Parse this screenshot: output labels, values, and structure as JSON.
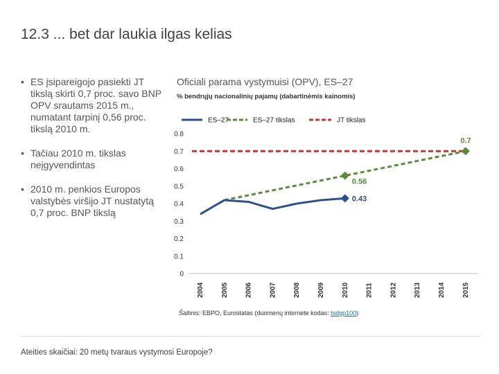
{
  "slide": {
    "title": "12.3 ... bet dar laukia ilgas kelias",
    "footer": "Ateities skaičiai: 20 metų tvaraus vystymosi Europoje?"
  },
  "bullets": [
    "ES įsipareigojo pasiekti JT tikslą skirti 0,7 proc. savo BNP OPV srautams 2015 m., numatant tarpinį 0,56 proc. tikslą 2010 m.",
    "Tačiau 2010 m. tikslas neįgyvendintas",
    "2010 m. penkios Europos valstybės viršijo JT nustatytą 0,7 proc. BNP tikslą"
  ],
  "bullet_marker": "•",
  "source": {
    "prefix": "Šaltinis:",
    "text": " EBPO, Eurostatas (duomenų internete kodas: ",
    "link": "tsdgp100",
    "suffix": ")"
  },
  "colors": {
    "eu27": "#2e4f8f",
    "target": "#5f8a3a",
    "un": "#c0392b",
    "axis": "#595959"
  },
  "chart_data": {
    "type": "line",
    "title": "Oficiali parama vystymuisi (OPV), ES–27",
    "subtitle": "% bendrųjų nacionalinių pajamų (dabartinėmis kainomis)",
    "x": [
      2004,
      2005,
      2006,
      2007,
      2008,
      2009,
      2010,
      2011,
      2012,
      2013,
      2014,
      2015
    ],
    "xtick_labels": [
      "2004",
      "2005",
      "2006",
      "2007",
      "2008",
      "2009",
      "2010",
      "2011",
      "2012",
      "2013",
      "2014",
      "2015"
    ],
    "yticks": [
      0,
      0.1,
      0.2,
      0.3,
      0.4,
      0.5,
      0.6,
      0.7,
      0.8
    ],
    "ytick_labels": [
      "0",
      "0.1",
      "0.2",
      "0.3",
      "0.4",
      "0.5",
      "0.6",
      "0.7",
      "0.8"
    ],
    "ylim": [
      0,
      0.8
    ],
    "legend_position": "top",
    "series": [
      {
        "name": "ES–27",
        "style": "solid",
        "x": [
          2004,
          2005,
          2006,
          2007,
          2008,
          2009,
          2010
        ],
        "values": [
          0.34,
          0.42,
          0.41,
          0.37,
          0.4,
          0.42,
          0.43
        ],
        "end_marker": "diamond"
      },
      {
        "name": "ES–27 tikslas",
        "style": "dashed",
        "x": [
          2005,
          2010,
          2015
        ],
        "values": [
          0.42,
          0.56,
          0.7
        ],
        "markers_at": [
          2010,
          2015
        ]
      },
      {
        "name": "JT tikslas",
        "style": "dashed",
        "x": [
          2004,
          2015
        ],
        "values": [
          0.7,
          0.7
        ]
      }
    ],
    "annotations": [
      {
        "x": 2010,
        "y": 0.43,
        "label": "0.43",
        "series": "ES–27"
      },
      {
        "x": 2010,
        "y": 0.56,
        "label": "0.56",
        "series": "ES–27 tikslas"
      },
      {
        "x": 2015,
        "y": 0.7,
        "label": "0.7",
        "series": "ES–27 tikslas"
      }
    ]
  }
}
